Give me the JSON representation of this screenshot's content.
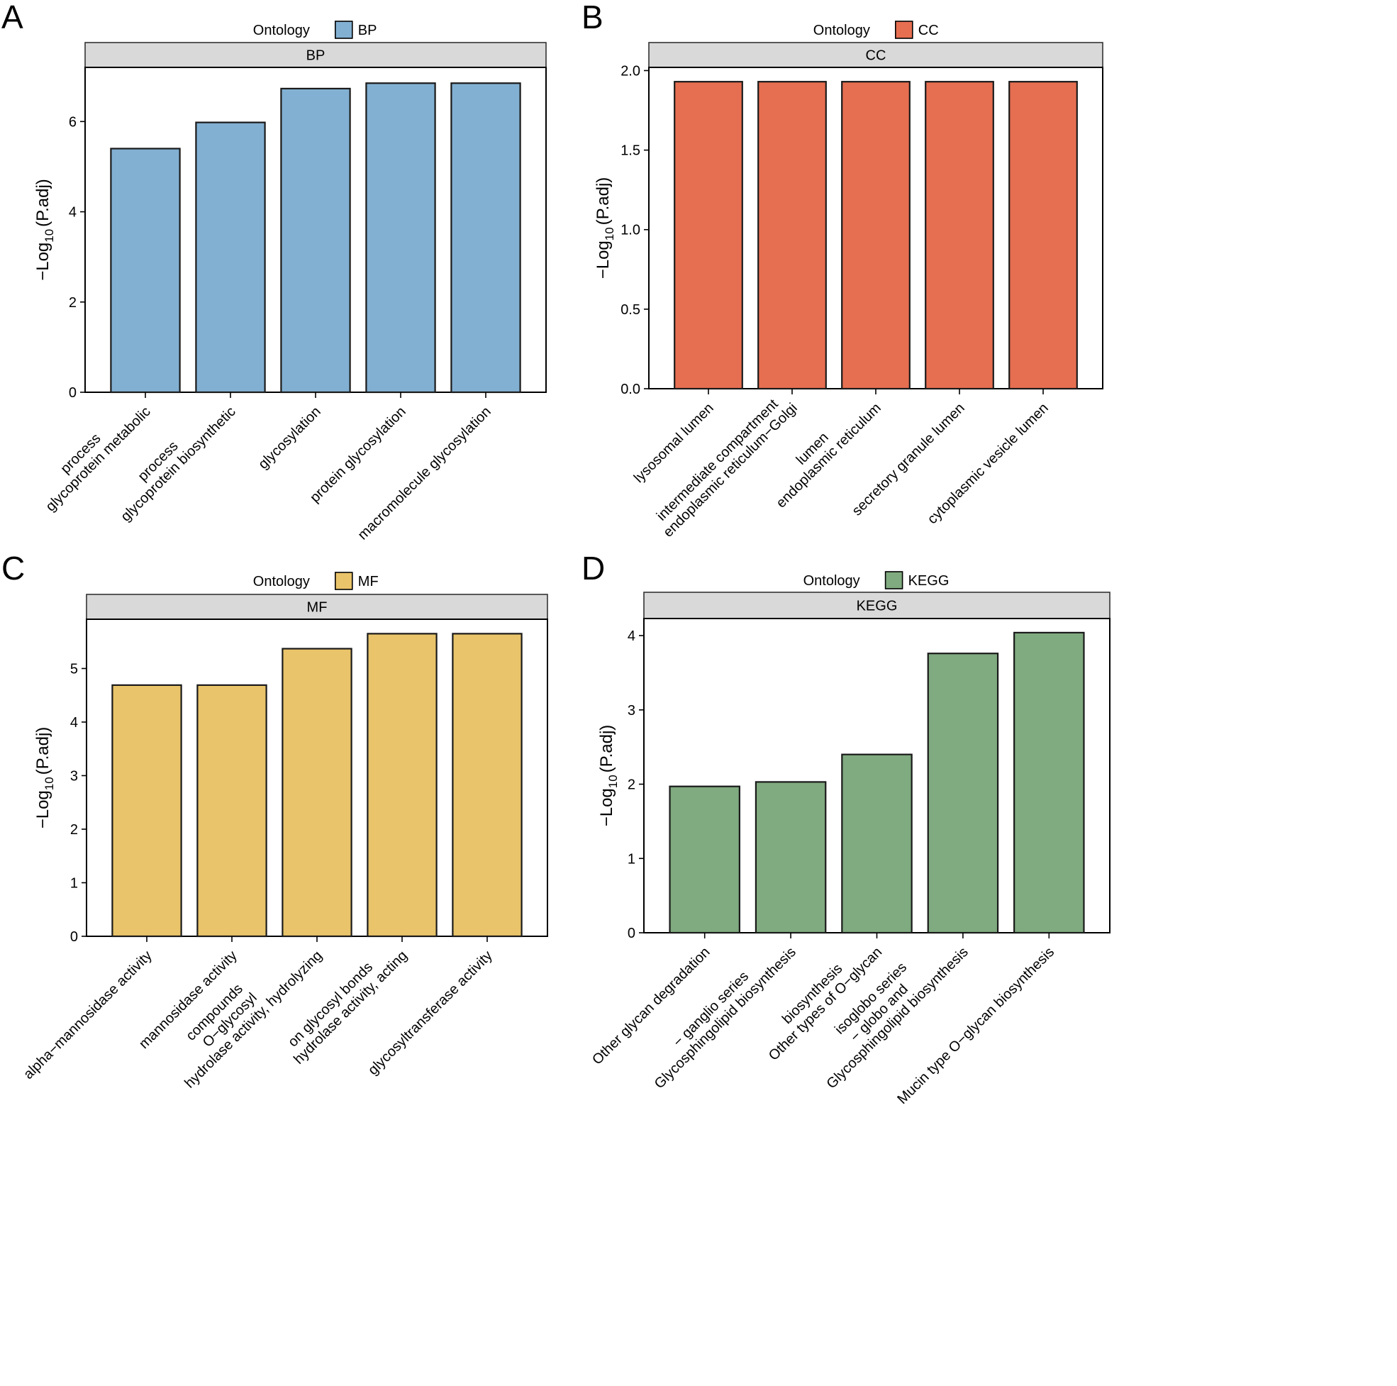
{
  "chart_data": [
    {
      "panel_letter": "A",
      "type": "bar",
      "legend_title": "Ontology",
      "legend_label": "BP",
      "strip_label": "BP",
      "color": "#82B0D2",
      "ylabel_prefix": "−Log",
      "ylabel_sub": "10",
      "ylabel_suffix": "(P.adj)",
      "ylim": [
        0,
        7.2
      ],
      "yticks": [
        "0",
        "2",
        "4",
        "6"
      ],
      "categories": [
        [
          "glycoprotein metabolic",
          "process"
        ],
        [
          "glycoprotein biosynthetic",
          "process"
        ],
        [
          "glycosylation"
        ],
        [
          "protein glycosylation"
        ],
        [
          "macromolecule glycosylation"
        ]
      ],
      "values": [
        5.4,
        5.98,
        6.73,
        6.85,
        6.85
      ]
    },
    {
      "panel_letter": "B",
      "type": "bar",
      "legend_title": "Ontology",
      "legend_label": "CC",
      "strip_label": "CC",
      "color": "#E76F51",
      "ylabel_prefix": "−Log",
      "ylabel_sub": "10",
      "ylabel_suffix": "(P.adj)",
      "ylim": [
        0,
        2.02
      ],
      "yticks": [
        "0.0",
        "0.5",
        "1.0",
        "1.5",
        "2.0"
      ],
      "categories": [
        [
          "lysosomal lumen"
        ],
        [
          "endoplasmic reticulum−Golgi",
          "intermediate compartment"
        ],
        [
          "endoplasmic reticulum",
          "lumen"
        ],
        [
          "secretory granule lumen"
        ],
        [
          "cytoplasmic vesicle lumen"
        ]
      ],
      "values": [
        1.93,
        1.93,
        1.93,
        1.93,
        1.93
      ]
    },
    {
      "panel_letter": "C",
      "type": "bar",
      "legend_title": "Ontology",
      "legend_label": "MF",
      "strip_label": "MF",
      "color": "#E9C46A",
      "ylabel_prefix": "−Log",
      "ylabel_sub": "10",
      "ylabel_suffix": "(P.adj)",
      "ylim": [
        0,
        5.92
      ],
      "yticks": [
        "0",
        "1",
        "2",
        "3",
        "4",
        "5"
      ],
      "categories": [
        [
          "alpha−mannosidase activity"
        ],
        [
          "mannosidase activity"
        ],
        [
          "hydrolase activity, hydrolyzing",
          "O−glycosyl",
          "compounds"
        ],
        [
          "hydrolase activity, acting",
          "on glycosyl bonds"
        ],
        [
          "glycosyltransferase activity"
        ]
      ],
      "values": [
        4.69,
        4.69,
        5.37,
        5.65,
        5.65
      ]
    },
    {
      "panel_letter": "D",
      "type": "bar",
      "legend_title": "Ontology",
      "legend_label": "KEGG",
      "strip_label": "KEGG",
      "color": "#80AA80",
      "ylabel_prefix": "−Log",
      "ylabel_sub": "10",
      "ylabel_suffix": "(P.adj)",
      "ylim": [
        0,
        4.23
      ],
      "yticks": [
        "0",
        "1",
        "2",
        "3",
        "4"
      ],
      "categories": [
        [
          "Other glycan degradation"
        ],
        [
          "Glycosphingolipid biosynthesis",
          "− ganglio series"
        ],
        [
          "Other types of O−glycan",
          "biosynthesis"
        ],
        [
          "Glycosphingolipid biosynthesis",
          "− globo and",
          "isoglobo series"
        ],
        [
          "Mucin type O−glycan biosynthesis"
        ]
      ],
      "values": [
        1.97,
        2.03,
        2.4,
        3.76,
        4.04
      ]
    }
  ]
}
